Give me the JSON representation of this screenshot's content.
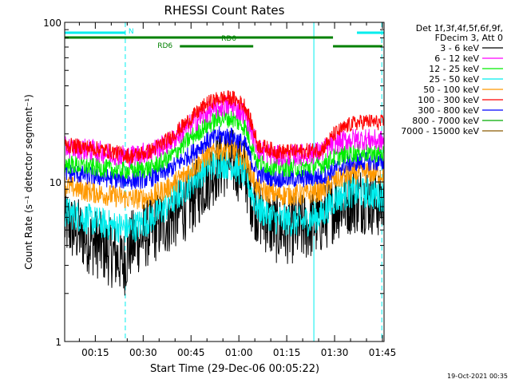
{
  "chart_data": {
    "type": "line",
    "title": "RHESSI Count Rates",
    "xlabel": "Start Time (29-Dec-06 00:05:22)",
    "ylabel": "Count Rate (s⁻¹ detector segment⁻¹)",
    "yscale": "log",
    "xlim_min": [
      5.4,
      105.5
    ],
    "ylim": [
      1,
      100
    ],
    "x_ticks": [
      {
        "min": 15,
        "label": "00:15"
      },
      {
        "min": 30,
        "label": "00:30"
      },
      {
        "min": 45,
        "label": "00:45"
      },
      {
        "min": 60,
        "label": "01:00"
      },
      {
        "min": 75,
        "label": "01:15"
      },
      {
        "min": 90,
        "label": "01:30"
      },
      {
        "min": 105,
        "label": "01:45"
      }
    ],
    "y_ticks": [
      {
        "value": 1,
        "label": "1"
      },
      {
        "value": 10,
        "label": "10"
      },
      {
        "value": 100,
        "label": "100"
      }
    ],
    "legend_header": [
      "Det 1f,3f,4f,5f,6f,9f,",
      "FDecim 3, Att 0"
    ],
    "legend_position": "top-right",
    "series": [
      {
        "name": "3 - 6 keV",
        "color": "#000000",
        "x": [
          5.4,
          12,
          20,
          24,
          26,
          30,
          38,
          45,
          50,
          54,
          58,
          62,
          64,
          66,
          72,
          80,
          86,
          90,
          95,
          100,
          104
        ],
        "values": [
          5.5,
          4.5,
          3.6,
          3.1,
          4.0,
          4.6,
          5.8,
          7.5,
          10.5,
          12.8,
          13.2,
          11.5,
          8.0,
          6.5,
          5.0,
          5.1,
          5.8,
          7.0,
          7.7,
          7.8,
          7.3
        ]
      },
      {
        "name": "6 - 12 keV",
        "color": "#ff00ff",
        "x": [
          5.4,
          12,
          20,
          26,
          32,
          38,
          45,
          50,
          54,
          58,
          62,
          64,
          66,
          72,
          80,
          86,
          90,
          95,
          100,
          104
        ],
        "values": [
          16.5,
          16,
          15,
          14.5,
          15.5,
          17.5,
          23,
          27,
          29.5,
          30,
          26.5,
          21,
          16,
          14.5,
          14.8,
          15.5,
          17.5,
          18.5,
          18.5,
          18
        ]
      },
      {
        "name": "12 - 25 keV",
        "color": "#00ee00",
        "x": [
          5.4,
          12,
          20,
          26,
          32,
          38,
          45,
          50,
          54,
          58,
          62,
          64,
          66,
          72,
          80,
          86,
          90,
          95,
          100,
          104
        ],
        "values": [
          13,
          12.5,
          12,
          11.8,
          12.2,
          14,
          19,
          22.5,
          25,
          25,
          22,
          17,
          13.2,
          12.3,
          12.3,
          12.8,
          14.3,
          15.2,
          15.2,
          15
        ]
      },
      {
        "name": "25 - 50 keV",
        "color": "#00eeee",
        "x": [
          5.4,
          12,
          20,
          26,
          32,
          38,
          45,
          50,
          54,
          58,
          62,
          64,
          66,
          72,
          80,
          86,
          90,
          95,
          100,
          104
        ],
        "values": [
          6.5,
          5.9,
          5.3,
          5.1,
          5.8,
          7.2,
          10,
          12.5,
          13.2,
          12.8,
          11.2,
          8.5,
          6.8,
          5.8,
          5.6,
          6.2,
          7.8,
          8.6,
          8.5,
          8.2
        ]
      },
      {
        "name": "50 - 100 keV",
        "color": "#ff9900",
        "x": [
          5.4,
          12,
          20,
          26,
          32,
          38,
          45,
          50,
          54,
          58,
          62,
          64,
          66,
          72,
          80,
          86,
          90,
          95,
          100,
          104
        ],
        "values": [
          9.5,
          8.8,
          8.2,
          7.8,
          8.0,
          9.2,
          12,
          14.5,
          16,
          15.8,
          13.8,
          11,
          9,
          8.3,
          8.3,
          8.8,
          10.2,
          11.2,
          11.5,
          11.2
        ]
      },
      {
        "name": "100 - 300 keV",
        "color": "#ff0000",
        "x": [
          5.4,
          12,
          20,
          26,
          32,
          38,
          45,
          50,
          54,
          58,
          62,
          64,
          66,
          72,
          80,
          86,
          90,
          95,
          100,
          104
        ],
        "values": [
          17,
          16.5,
          15.5,
          14.5,
          15.5,
          18.5,
          25,
          31,
          33.5,
          33.5,
          30,
          23,
          17,
          15.5,
          15.5,
          16,
          20,
          23,
          24,
          23.5
        ]
      },
      {
        "name": "300 - 800 keV",
        "color": "#0000ff",
        "x": [
          5.4,
          12,
          20,
          26,
          32,
          38,
          45,
          50,
          54,
          58,
          62,
          64,
          66,
          72,
          80,
          86,
          90,
          95,
          100,
          104
        ],
        "values": [
          11.5,
          11,
          10.5,
          10.2,
          10.5,
          11.8,
          15,
          18,
          19.5,
          19.2,
          17,
          13.5,
          11.2,
          10.5,
          10.5,
          10.8,
          12,
          13.2,
          13.5,
          13.2
        ]
      },
      {
        "name": "800 - 7000 keV",
        "color": "#00aa00",
        "x": [],
        "values": []
      },
      {
        "name": "7000 - 15000 keV",
        "color": "#8b5a00",
        "x": [],
        "values": []
      }
    ],
    "attenuator_bars": [
      {
        "label": "N",
        "color": "#00eeee",
        "segments": [
          [
            5.4,
            24.4
          ],
          [
            97,
            105.5
          ]
        ]
      },
      {
        "label": "RD0",
        "color": "#008000",
        "segments": [
          [
            5.4,
            89.5
          ]
        ]
      },
      {
        "label": "RD6",
        "color": "#008000",
        "segments": [
          [
            41.5,
            64.5
          ],
          [
            89.5,
            105
          ]
        ]
      }
    ],
    "vertical_markers": [
      {
        "min": 24.4,
        "style": "dashed",
        "color": "#00eeee"
      },
      {
        "min": 83.5,
        "style": "solid",
        "color": "#00eeee"
      },
      {
        "min": 104.8,
        "style": "dashed",
        "color": "#00eeee"
      }
    ],
    "grid": false
  },
  "footer_timestamp": "19-Oct-2021 00:35"
}
